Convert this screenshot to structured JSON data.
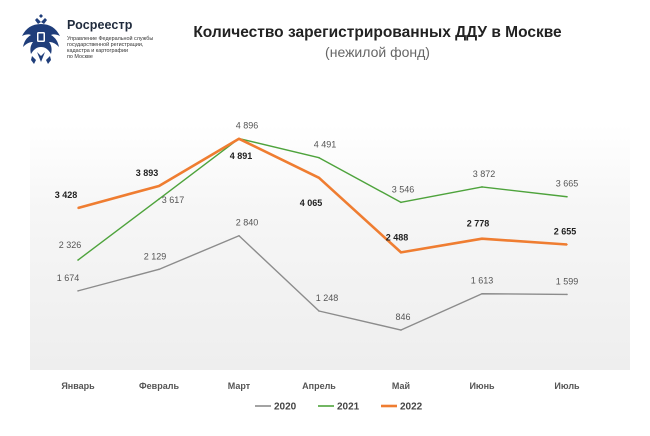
{
  "header": {
    "org_name": "Росреестр",
    "org_sub": [
      "Управление Федеральной службы",
      "государственной регистрации,",
      "кадастра и картографии",
      "по Москве"
    ],
    "emblem_icon": "double-headed-eagle-emblem-icon"
  },
  "chart_data": {
    "type": "line",
    "title": "Количество зарегистрированных ДДУ в Москве",
    "subtitle": "(нежилой фонд)",
    "categories": [
      "Январь",
      "Февраль",
      "Март",
      "Апрель",
      "Май",
      "Июнь",
      "Июль"
    ],
    "series": [
      {
        "name": "2020",
        "color": "#8c8c8c",
        "values": [
          1674,
          2129,
          2840,
          1248,
          846,
          1613,
          1599
        ],
        "labels": [
          "1 674",
          "2 129",
          "2 840",
          "1 248",
          "846",
          "1 613",
          "1 599"
        ]
      },
      {
        "name": "2021",
        "color": "#4ea33c",
        "values": [
          2326,
          3617,
          4896,
          4491,
          3546,
          3872,
          3665
        ],
        "labels": [
          "2 326",
          "3 617",
          "4 896",
          "4 491",
          "3 546",
          "3 872",
          "3 665"
        ]
      },
      {
        "name": "2022",
        "color": "#ef7d31",
        "values": [
          3428,
          3893,
          4891,
          4065,
          2488,
          2778,
          2655
        ],
        "labels": [
          "3 428",
          "3 893",
          "4 891",
          "4 065",
          "2 488",
          "2 778",
          "2 655"
        ]
      }
    ],
    "ylim": [
      0,
      5500
    ],
    "grid": false,
    "legend": "bottom-center"
  }
}
